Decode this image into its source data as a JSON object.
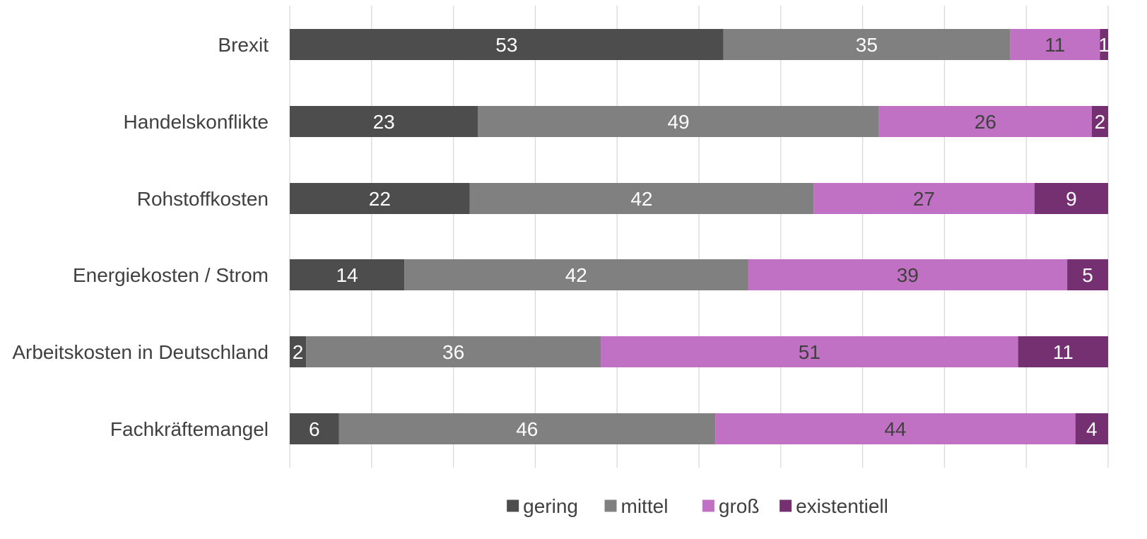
{
  "chart_data": {
    "type": "bar",
    "orientation": "horizontal",
    "stacked": true,
    "categories": [
      "Brexit",
      "Handelskonflikte",
      "Rohstoffkosten",
      "Energiekosten / Strom",
      "Arbeitskosten in Deutschland",
      "Fachkräftemangel"
    ],
    "series": [
      {
        "name": "gering",
        "color": "#4d4d4d",
        "label_color": "#ffffff",
        "values": [
          53,
          23,
          22,
          14,
          2,
          6
        ]
      },
      {
        "name": "mittel",
        "color": "#808080",
        "label_color": "#ffffff",
        "values": [
          35,
          49,
          42,
          42,
          36,
          46
        ]
      },
      {
        "name": "groß",
        "color": "#c171c3",
        "label_color": "#404040",
        "values": [
          11,
          26,
          27,
          39,
          51,
          44
        ]
      },
      {
        "name": "existentiell",
        "color": "#743071",
        "label_color": "#ffffff",
        "values": [
          1,
          2,
          9,
          5,
          11,
          4
        ]
      }
    ],
    "xlim": [
      0,
      100
    ],
    "x_gridlines": [
      0,
      10,
      20,
      30,
      40,
      50,
      60,
      70,
      80,
      90,
      100
    ],
    "grid": true,
    "legend": "bottom",
    "title": "",
    "xlabel": "",
    "ylabel": ""
  }
}
